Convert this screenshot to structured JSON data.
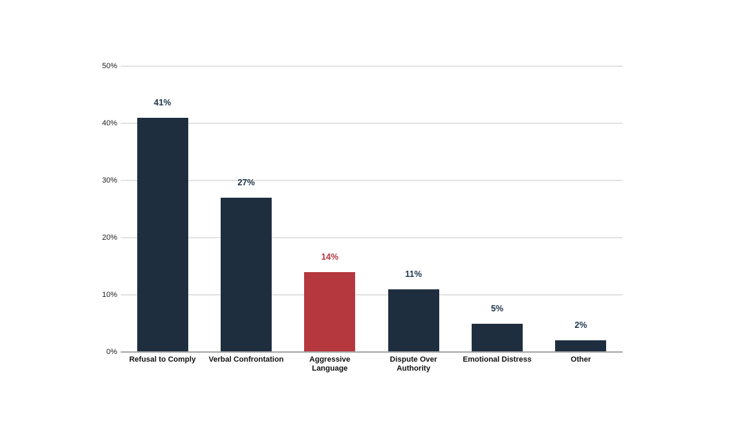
{
  "chart_data": {
    "type": "bar",
    "title": "",
    "xlabel": "",
    "ylabel": "",
    "categories": [
      "Refusal to Comply",
      "Verbal Confrontation",
      "Aggressive Language",
      "Dispute Over Authority",
      "Emotional Distress",
      "Other"
    ],
    "category_label_lines": [
      [
        "Refusal to Comply"
      ],
      [
        "Verbal Confrontation"
      ],
      [
        "Aggressive",
        "Language"
      ],
      [
        "Dispute Over",
        "Authority"
      ],
      [
        "Emotional Distress"
      ],
      [
        "Other"
      ]
    ],
    "values": [
      41,
      27,
      14,
      11,
      5,
      2
    ],
    "value_labels": [
      "41%",
      "27%",
      "14%",
      "11%",
      "5%",
      "2%"
    ],
    "highlight_index": 2,
    "ylim": [
      0,
      50
    ],
    "yticks": [
      0,
      10,
      20,
      30,
      40,
      50
    ],
    "ytick_labels": [
      "0%",
      "10%",
      "20%",
      "30%",
      "40%",
      "50%"
    ],
    "grid": true,
    "legend": false
  },
  "colors": {
    "background": "#ffffff",
    "bar_navy": "#1f2e3f",
    "bar_red": "#b5383f",
    "value_label_navy": "#21374d",
    "value_label_red": "#b5383f",
    "gridline": "#e3e3e3",
    "baseline": "#a6a6a6",
    "ytick_text": "#212121",
    "xtick_text": "#111111"
  }
}
